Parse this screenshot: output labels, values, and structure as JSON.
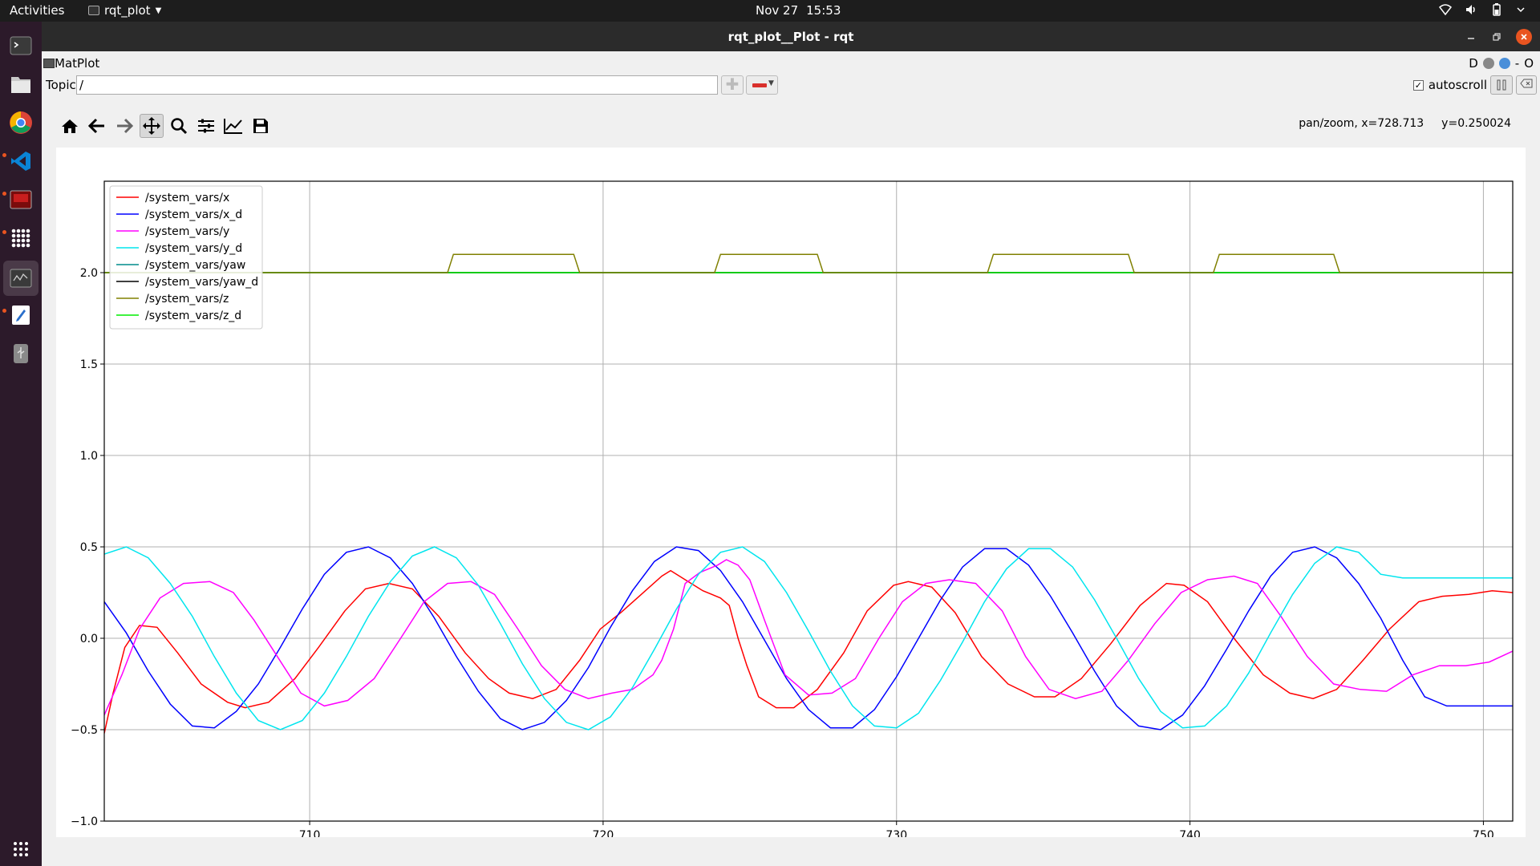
{
  "topbar": {
    "activities": "Activities",
    "app_name": "rqt_plot",
    "date": "Nov 27",
    "time": "15:53"
  },
  "dock": {
    "items": [
      "terminal-icon",
      "files-icon",
      "chrome-icon",
      "vscode-icon",
      "app-red-icon",
      "grid-dots-icon",
      "rqt-icon",
      "text-editor-icon",
      "usb-icon"
    ],
    "show_apps": "apps-grid-icon"
  },
  "window": {
    "title": "rqt_plot__Plot - rqt"
  },
  "plugin": {
    "name": "MatPlot",
    "right_letters": {
      "d": "D",
      "o": "O"
    }
  },
  "topic": {
    "label": "Topic",
    "value": "/"
  },
  "autoscroll": {
    "label": "autoscroll",
    "checked": true,
    "check_glyph": "✓"
  },
  "coords": {
    "mode_x": "pan/zoom, x=728.713",
    "y": "y=0.250024"
  },
  "chart_data": {
    "type": "line",
    "xlim": [
      703,
      751
    ],
    "ylim": [
      -1.0,
      2.5
    ],
    "xticks": [
      "710",
      "720",
      "730",
      "740",
      "750"
    ],
    "xtick_values": [
      710,
      720,
      730,
      740,
      750
    ],
    "yticks": [
      "−1.0",
      "−0.5",
      "0.0",
      "0.5",
      "1.0",
      "1.5",
      "2.0"
    ],
    "ytick_values": [
      -1.0,
      -0.5,
      0.0,
      0.5,
      1.0,
      1.5,
      2.0
    ],
    "grid": true,
    "legend_position": "top-left",
    "series": [
      {
        "name": "/system_vars/x",
        "color": "#ff0000",
        "x": [
          703.0,
          703.3,
          703.7,
          704.2,
          704.8,
          705.5,
          706.3,
          707.2,
          707.8,
          708.6,
          709.5,
          710.3,
          711.2,
          711.9,
          712.7,
          713.5,
          714.4,
          715.3,
          716.1,
          716.8,
          717.6,
          718.4,
          719.2,
          719.9,
          720.6,
          721.3,
          722.0,
          722.3,
          722.8,
          723.4,
          724.0,
          724.3,
          724.6,
          724.9,
          725.3,
          725.9,
          726.5,
          727.3,
          728.2,
          729.0,
          729.9,
          730.4,
          731.2,
          732.0,
          732.9,
          733.8,
          734.7,
          735.4,
          736.3,
          737.3,
          738.3,
          739.2,
          739.8,
          740.6,
          741.5,
          742.5,
          743.4,
          744.2,
          745.0,
          745.9,
          746.8,
          747.8,
          748.6,
          749.5,
          750.3,
          751.0
        ],
        "y": [
          -0.52,
          -0.3,
          -0.05,
          0.07,
          0.06,
          -0.08,
          -0.25,
          -0.35,
          -0.38,
          -0.35,
          -0.22,
          -0.05,
          0.15,
          0.27,
          0.3,
          0.27,
          0.12,
          -0.08,
          -0.22,
          -0.3,
          -0.33,
          -0.28,
          -0.12,
          0.05,
          0.14,
          0.24,
          0.34,
          0.37,
          0.32,
          0.26,
          0.22,
          0.18,
          0.0,
          -0.15,
          -0.32,
          -0.38,
          -0.38,
          -0.28,
          -0.08,
          0.15,
          0.29,
          0.31,
          0.28,
          0.14,
          -0.1,
          -0.25,
          -0.32,
          -0.32,
          -0.22,
          -0.03,
          0.18,
          0.3,
          0.29,
          0.2,
          0.0,
          -0.2,
          -0.3,
          -0.33,
          -0.28,
          -0.12,
          0.05,
          0.2,
          0.23,
          0.24,
          0.26,
          0.25
        ]
      },
      {
        "name": "/system_vars/x_d",
        "color": "#0000ff",
        "x": [
          703.0,
          703.75,
          704.5,
          705.25,
          706.0,
          706.75,
          707.5,
          708.25,
          709.0,
          709.75,
          710.5,
          711.25,
          712.0,
          712.75,
          713.5,
          714.25,
          715.0,
          715.75,
          716.5,
          717.25,
          718.0,
          718.75,
          719.5,
          720.25,
          721.0,
          721.75,
          722.5,
          723.25,
          724.0,
          724.75,
          725.5,
          726.25,
          727.0,
          727.75,
          728.5,
          729.25,
          730.0,
          730.75,
          731.5,
          732.25,
          733.0,
          733.75,
          734.5,
          735.25,
          736.0,
          736.75,
          737.5,
          738.25,
          739.0,
          739.75,
          740.5,
          741.25,
          742.0,
          742.75,
          743.5,
          744.25,
          745.0,
          745.75,
          746.5,
          747.25,
          748.0,
          748.75,
          749.5,
          750.25,
          751.0
        ],
        "y": [
          0.2,
          0.03,
          -0.18,
          -0.36,
          -0.48,
          -0.49,
          -0.4,
          -0.25,
          -0.05,
          0.16,
          0.35,
          0.47,
          0.5,
          0.44,
          0.3,
          0.11,
          -0.1,
          -0.29,
          -0.44,
          -0.5,
          -0.46,
          -0.34,
          -0.16,
          0.06,
          0.26,
          0.42,
          0.5,
          0.48,
          0.37,
          0.2,
          -0.01,
          -0.22,
          -0.39,
          -0.49,
          -0.49,
          -0.39,
          -0.21,
          0.0,
          0.21,
          0.39,
          0.49,
          0.49,
          0.4,
          0.23,
          0.03,
          -0.18,
          -0.37,
          -0.48,
          -0.5,
          -0.42,
          -0.26,
          -0.06,
          0.15,
          0.34,
          0.47,
          0.5,
          0.44,
          0.3,
          0.11,
          -0.12,
          -0.32,
          -0.37,
          -0.37,
          -0.37,
          -0.37
        ]
      },
      {
        "name": "/system_vars/y",
        "color": "#ff00ff",
        "x": [
          703.0,
          703.6,
          704.2,
          704.9,
          705.7,
          706.6,
          707.4,
          708.1,
          708.9,
          709.7,
          710.5,
          711.3,
          712.2,
          713.1,
          713.9,
          714.7,
          715.5,
          716.3,
          717.1,
          717.9,
          718.7,
          719.5,
          720.3,
          721.0,
          721.7,
          722.0,
          722.4,
          722.8,
          723.3,
          723.9,
          724.2,
          724.6,
          725.0,
          725.5,
          726.2,
          727.0,
          727.8,
          728.6,
          729.4,
          730.2,
          731.0,
          731.8,
          732.7,
          733.6,
          734.4,
          735.2,
          736.1,
          737.0,
          737.9,
          738.8,
          739.7,
          740.6,
          741.5,
          742.3,
          743.1,
          744.0,
          744.9,
          745.8,
          746.7,
          747.6,
          748.5,
          749.4,
          750.2,
          751.0
        ],
        "y": [
          -0.42,
          -0.2,
          0.05,
          0.22,
          0.3,
          0.31,
          0.25,
          0.1,
          -0.1,
          -0.3,
          -0.37,
          -0.34,
          -0.22,
          0.0,
          0.2,
          0.3,
          0.31,
          0.24,
          0.05,
          -0.15,
          -0.28,
          -0.33,
          -0.3,
          -0.28,
          -0.2,
          -0.12,
          0.05,
          0.3,
          0.36,
          0.4,
          0.43,
          0.4,
          0.32,
          0.1,
          -0.2,
          -0.31,
          -0.3,
          -0.22,
          0.0,
          0.2,
          0.3,
          0.32,
          0.3,
          0.15,
          -0.1,
          -0.28,
          -0.33,
          -0.29,
          -0.12,
          0.08,
          0.25,
          0.32,
          0.34,
          0.3,
          0.12,
          -0.1,
          -0.25,
          -0.28,
          -0.29,
          -0.2,
          -0.15,
          -0.15,
          -0.13,
          -0.07
        ]
      },
      {
        "name": "/system_vars/y_d",
        "color": "#00e5ee",
        "x": [
          703.0,
          703.75,
          704.5,
          705.25,
          706.0,
          706.75,
          707.5,
          708.25,
          709.0,
          709.75,
          710.5,
          711.25,
          712.0,
          712.75,
          713.5,
          714.25,
          715.0,
          715.75,
          716.5,
          717.25,
          718.0,
          718.75,
          719.5,
          720.25,
          721.0,
          721.75,
          722.5,
          723.25,
          724.0,
          724.75,
          725.5,
          726.25,
          727.0,
          727.75,
          728.5,
          729.25,
          730.0,
          730.75,
          731.5,
          732.25,
          733.0,
          733.75,
          734.5,
          735.25,
          736.0,
          736.75,
          737.5,
          738.25,
          739.0,
          739.75,
          740.5,
          741.25,
          742.0,
          742.75,
          743.5,
          744.25,
          745.0,
          745.75,
          746.5,
          747.25,
          748.0,
          748.75,
          749.5,
          750.25,
          751.0
        ],
        "y": [
          0.46,
          0.5,
          0.44,
          0.3,
          0.12,
          -0.1,
          -0.3,
          -0.45,
          -0.5,
          -0.45,
          -0.3,
          -0.1,
          0.12,
          0.31,
          0.45,
          0.5,
          0.44,
          0.29,
          0.08,
          -0.14,
          -0.33,
          -0.46,
          -0.5,
          -0.43,
          -0.27,
          -0.06,
          0.16,
          0.35,
          0.47,
          0.5,
          0.42,
          0.25,
          0.04,
          -0.18,
          -0.37,
          -0.48,
          -0.49,
          -0.41,
          -0.23,
          -0.02,
          0.2,
          0.38,
          0.49,
          0.49,
          0.39,
          0.21,
          0.0,
          -0.22,
          -0.4,
          -0.49,
          -0.48,
          -0.37,
          -0.19,
          0.03,
          0.24,
          0.41,
          0.5,
          0.47,
          0.35,
          0.33,
          0.33,
          0.33,
          0.33,
          0.33,
          0.33
        ]
      },
      {
        "name": "/system_vars/yaw",
        "color": "#008b8b",
        "x": [
          703.0,
          751.0
        ],
        "y": [
          2.0,
          2.0
        ]
      },
      {
        "name": "/system_vars/yaw_d",
        "color": "#000000",
        "x": [
          703.0,
          751.0
        ],
        "y": [
          2.0,
          2.0
        ]
      },
      {
        "name": "/system_vars/z",
        "color": "#808000",
        "x": [
          703.0,
          714.7,
          714.9,
          719.0,
          719.2,
          723.8,
          724.0,
          727.3,
          727.5,
          733.1,
          733.3,
          737.9,
          738.1,
          740.8,
          741.0,
          744.9,
          745.1,
          751.0
        ],
        "y": [
          2.0,
          2.0,
          2.1,
          2.1,
          2.0,
          2.0,
          2.1,
          2.1,
          2.0,
          2.0,
          2.1,
          2.1,
          2.0,
          2.0,
          2.1,
          2.1,
          2.0,
          2.0
        ]
      },
      {
        "name": "/system_vars/z_d",
        "color": "#00ee00",
        "x": [
          703.0,
          751.0
        ],
        "y": [
          2.0,
          2.0
        ]
      }
    ]
  }
}
